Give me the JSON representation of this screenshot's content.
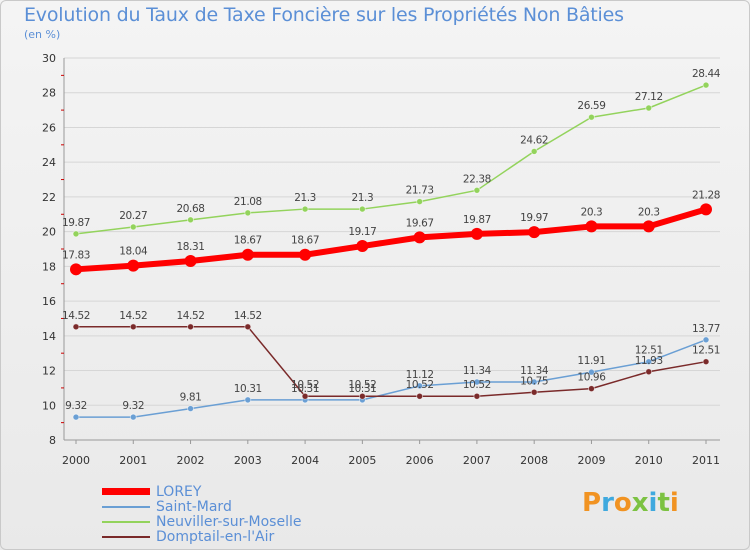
{
  "title": "Evolution du Taux de Taxe Foncière sur les Propriétés Non Bâties",
  "unit": "(en %)",
  "logo": {
    "text": "Proxiti",
    "colors": [
      "#f19322",
      "#3fa9de",
      "#f19322",
      "#7cc242",
      "#3fa9de",
      "#7cc242",
      "#f19322"
    ]
  },
  "chart_data": {
    "type": "line",
    "title": "Evolution du Taux de Taxe Foncière sur les Propriétés Non Bâties",
    "ylabel": "(en %)",
    "xlabel": "",
    "ylim": [
      8,
      30
    ],
    "yticks": [
      8,
      10,
      12,
      14,
      16,
      18,
      20,
      22,
      24,
      26,
      28,
      30
    ],
    "x": [
      "2000",
      "2001",
      "2002",
      "2003",
      "2004",
      "2005",
      "2006",
      "2007",
      "2008",
      "2009",
      "2010",
      "2011"
    ],
    "grid": "horizontal",
    "legend_position": "bottom-left",
    "series": [
      {
        "name": "LOREY",
        "color": "#ff0000",
        "width": 6,
        "marker": 6,
        "values": [
          17.83,
          18.04,
          18.31,
          18.67,
          18.67,
          19.17,
          19.67,
          19.87,
          19.97,
          20.3,
          20.3,
          21.28
        ],
        "labels": [
          "17.83",
          "18.04",
          "18.31",
          "18.67",
          "18.67",
          "19.17",
          "19.67",
          "19.87",
          "19.97",
          "20.3",
          "20.3",
          "21.28"
        ]
      },
      {
        "name": "Saint-Mard",
        "color": "#6a9fd4",
        "width": 1.5,
        "marker": 3,
        "values": [
          9.32,
          9.32,
          9.81,
          10.31,
          10.31,
          10.31,
          11.12,
          11.34,
          11.34,
          11.91,
          12.51,
          13.77
        ],
        "labels": [
          "9.32",
          "9.32",
          "9.81",
          "10.31",
          "10.31",
          "10.31",
          "11.12",
          "11.34",
          "11.34",
          "11.91",
          "12.51",
          "13.77"
        ]
      },
      {
        "name": "Neuviller-sur-Moselle",
        "color": "#93d35c",
        "width": 1.5,
        "marker": 3,
        "values": [
          19.87,
          20.27,
          20.68,
          21.08,
          21.3,
          21.3,
          21.73,
          22.38,
          24.62,
          26.59,
          27.12,
          28.44
        ],
        "labels": [
          "19.87",
          "20.27",
          "20.68",
          "21.08",
          "21.3",
          "21.3",
          "21.73",
          "22.38",
          "24.62",
          "26.59",
          "27.12",
          "28.44"
        ]
      },
      {
        "name": "Domptail-en-l'Air",
        "color": "#7a2a2a",
        "width": 1.5,
        "marker": 3,
        "values": [
          14.52,
          14.52,
          14.52,
          14.52,
          10.52,
          10.52,
          10.52,
          10.52,
          10.75,
          10.96,
          11.93,
          12.51
        ],
        "labels": [
          "14.52",
          "14.52",
          "14.52",
          "14.52",
          "10.52",
          "10.52",
          "10.52",
          "10.52",
          "10.75",
          "10.96",
          "11.93",
          "12.51"
        ]
      }
    ]
  }
}
